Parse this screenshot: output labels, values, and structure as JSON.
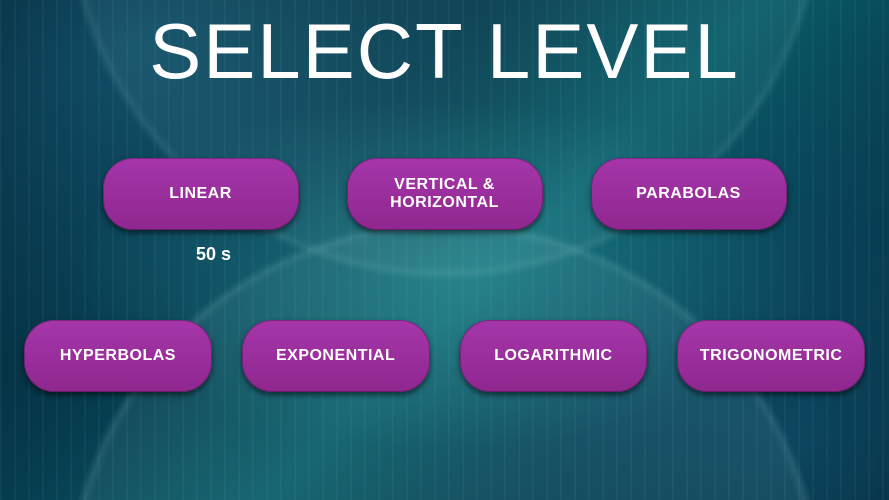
{
  "title": "SELECT LEVEL",
  "timer": "50 s",
  "rows": {
    "top": [
      {
        "id": "linear",
        "label": "LINEAR"
      },
      {
        "id": "vertical-horizontal",
        "label": "VERTICAL & HORIZONTAL"
      },
      {
        "id": "parabolas",
        "label": "PARABOLAS"
      }
    ],
    "bottom": [
      {
        "id": "hyperbolas",
        "label": "HYPERBOLAS"
      },
      {
        "id": "exponential",
        "label": "EXPONENTIAL"
      },
      {
        "id": "logarithmic",
        "label": "LOGARITHMIC"
      },
      {
        "id": "trigonometric",
        "label": "TRIGONOMETRIC"
      }
    ]
  },
  "colors": {
    "button_bg": "#9c2fa0",
    "button_text": "#ffffff",
    "title_text": "#ffffff"
  }
}
